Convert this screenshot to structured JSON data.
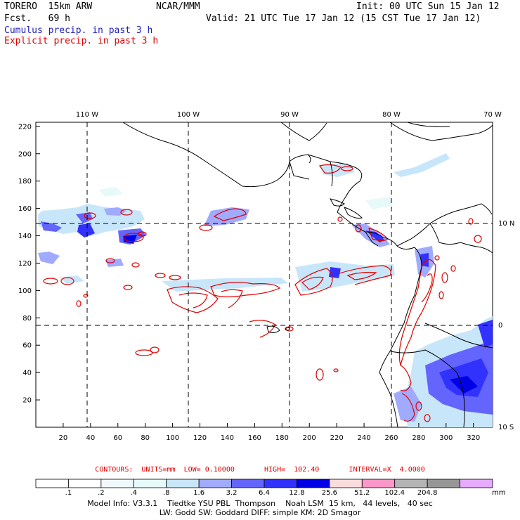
{
  "header": {
    "model": "TORERO  15km ARW",
    "org": "NCAR/MMM",
    "init": "Init: 00 UTC Sun 15 Jan 12",
    "fcst": "Fcst.   69 h",
    "valid": "Valid: 21 UTC Tue 17 Jan 12 (15 CST Tue 17 Jan 12)",
    "line_cumulus": "Cumulus precip. in past 3 h",
    "line_explicit": "Explicit precip. in past 3 h"
  },
  "map": {
    "top_lon_labels": [
      "110 W",
      "100 W",
      "90 W",
      "80 W",
      "70 W"
    ],
    "right_lat_labels": [
      "10 N",
      "0",
      "10 S"
    ],
    "y_ticks": [
      "220",
      "200",
      "180",
      "160",
      "140",
      "120",
      "100",
      "80",
      "60",
      "40",
      "20"
    ],
    "x_ticks": [
      "20",
      "40",
      "60",
      "80",
      "100",
      "120",
      "140",
      "160",
      "180",
      "200",
      "220",
      "240",
      "260",
      "280",
      "300",
      "320"
    ],
    "x_range": [
      0,
      334
    ],
    "y_range": [
      0,
      223
    ],
    "colors": {
      "cumulus_precip": "#3030ff",
      "explicit_precip": "#e00000",
      "coastline": "#000000",
      "gridline": "#000000"
    }
  },
  "contours": {
    "text": "CONTOURS:  UNITS=mm  LOW= 0.10000       HIGH=  102.40       INTERVAL=X  4.0000"
  },
  "colorbar": {
    "labels": [
      ".1",
      ".2",
      ".4",
      ".8",
      "1.6",
      "3.2",
      "6.4",
      "12.8",
      "25.6",
      "51.2",
      "102.4",
      "204.8"
    ],
    "unit": "mm",
    "colors": [
      "#ffffff",
      "#ffffff",
      "#f0f8ff",
      "#e6fafa",
      "#c8e6fa",
      "#a0aaff",
      "#6464ff",
      "#3232ff",
      "#0000e6",
      "#fadcdc",
      "#fa96c8",
      "#b4b4b4",
      "#969696",
      "#e6aaff"
    ]
  },
  "footer": {
    "line1": "Model Info: V3.3.1    Tiedtke YSU PBL  Thompson    Noah LSM  15 km,   44 levels,   40 sec",
    "line2": "LW: Godd SW: Goddard DIFF: simple KM: 2D Smagor"
  }
}
